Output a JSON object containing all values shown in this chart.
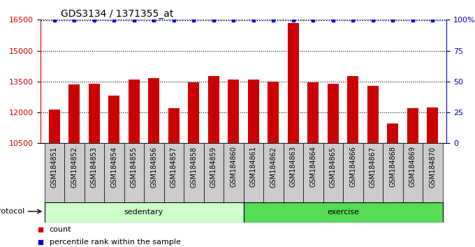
{
  "title": "GDS3134 / 1371355_at",
  "categories": [
    "GSM184851",
    "GSM184852",
    "GSM184853",
    "GSM184854",
    "GSM184855",
    "GSM184856",
    "GSM184857",
    "GSM184858",
    "GSM184859",
    "GSM184860",
    "GSM184861",
    "GSM184862",
    "GSM184863",
    "GSM184864",
    "GSM184865",
    "GSM184866",
    "GSM184867",
    "GSM184868",
    "GSM184869",
    "GSM184870"
  ],
  "values": [
    12150,
    13350,
    13400,
    12800,
    13600,
    13650,
    12200,
    13450,
    13750,
    13600,
    13600,
    13500,
    16350,
    13450,
    13400,
    13750,
    13300,
    11450,
    12200,
    12250
  ],
  "bar_color": "#cc0000",
  "percentile_color": "#0000cc",
  "ylim_left": [
    10500,
    16500
  ],
  "ylim_right": [
    0,
    100
  ],
  "yticks_left": [
    10500,
    12000,
    13500,
    15000,
    16500
  ],
  "yticks_right": [
    0,
    25,
    50,
    75,
    100
  ],
  "ytick_labels_right": [
    "0",
    "25",
    "50",
    "75",
    "100%"
  ],
  "groups": [
    {
      "label": "sedentary",
      "start": 0,
      "end": 10,
      "color": "#ccffcc"
    },
    {
      "label": "exercise",
      "start": 10,
      "end": 20,
      "color": "#55dd55"
    }
  ],
  "protocol_label": "protocol",
  "legend_count_label": "count",
  "legend_pct_label": "percentile rank within the sample",
  "title_fontsize": 10,
  "tick_label_fontsize": 7,
  "legend_fontsize": 8,
  "background_color": "#ffffff",
  "grid_color": "#aaaaaa",
  "xtick_bg_color": "#cccccc"
}
